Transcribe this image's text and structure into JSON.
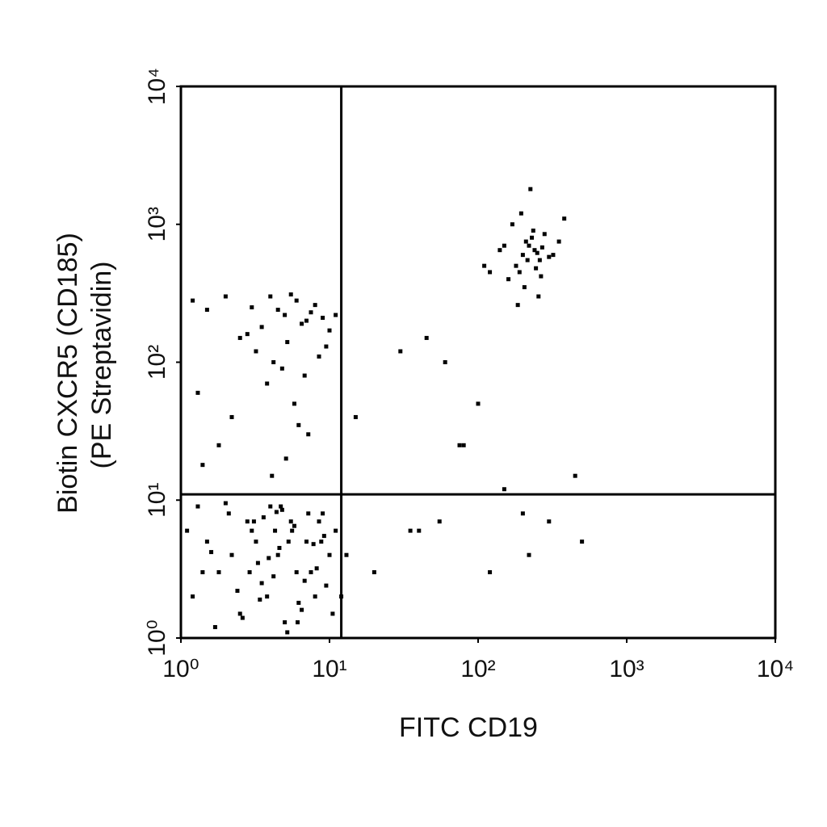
{
  "chart_data": {
    "type": "scatter",
    "xlabel": "FITC CD19",
    "ylabel": [
      "Biotin CXCR5 (CD185)",
      "(PE Streptavidin)"
    ],
    "xlog": true,
    "ylog": true,
    "xlim": [
      1,
      10000
    ],
    "ylim": [
      1,
      10000
    ],
    "xticks": [
      {
        "value": 1,
        "label": "10⁰"
      },
      {
        "value": 10,
        "label": "10¹"
      },
      {
        "value": 100,
        "label": "10²"
      },
      {
        "value": 1000,
        "label": "10³"
      },
      {
        "value": 10000,
        "label": "10⁴"
      }
    ],
    "yticks": [
      {
        "value": 1,
        "label": "10⁰"
      },
      {
        "value": 10,
        "label": "10¹"
      },
      {
        "value": 100,
        "label": "10²"
      },
      {
        "value": 1000,
        "label": "10³"
      },
      {
        "value": 10000,
        "label": "10⁴"
      }
    ],
    "gate_x": 12,
    "gate_y": 11,
    "color": "#000000",
    "x": [
      1.2,
      1.5,
      1.8,
      2.1,
      2.5,
      3,
      3.5,
      4,
      4.5,
      5,
      5.5,
      6,
      7,
      8,
      9,
      10,
      11,
      1.3,
      1.7,
      2.2,
      2.8,
      3.3,
      3.8,
      4.3,
      4.8,
      5.3,
      6.5,
      7.5,
      8.5,
      9.5,
      1.1,
      1.4,
      2,
      2.6,
      3.2,
      3.6,
      4.2,
      4.6,
      5.6,
      6.2,
      7.2,
      8.2,
      9.2,
      10.5,
      1.6,
      2.4,
      3.1,
      3.9,
      4.7,
      5.8,
      6.8,
      7.8,
      8.8,
      2.9,
      3.4,
      4.4,
      5.2,
      6.1,
      12,
      13,
      3,
      4,
      5,
      6,
      7,
      8,
      3.5,
      4.5,
      5.5,
      6.5,
      7.5,
      2.5,
      9,
      10,
      1.2,
      1.5,
      2,
      1.3,
      3.2,
      4.8,
      5.2,
      6.8,
      8.5,
      2.2,
      3.8,
      4.2,
      5.8,
      7.2,
      1.8,
      2.8,
      6.2,
      9.5,
      11,
      1.4,
      4.1,
      5.1,
      200,
      220,
      240,
      260,
      180,
      210,
      230,
      250,
      190,
      270,
      160,
      300,
      150,
      280,
      205,
      235,
      215,
      245,
      170,
      320,
      140,
      110,
      120,
      350,
      380,
      225,
      255,
      195,
      265,
      185,
      45,
      30,
      60,
      80,
      100,
      75,
      40,
      200,
      150,
      450,
      500,
      300,
      220,
      20,
      35,
      55,
      15,
      120
    ],
    "y": [
      2,
      5,
      3,
      8,
      1.5,
      6,
      2.5,
      9,
      4,
      1.3,
      7,
      3,
      5,
      2,
      8,
      4,
      6,
      9,
      1.2,
      4,
      7,
      3.5,
      2,
      6,
      8.5,
      5,
      1.6,
      3,
      7,
      2.4,
      6,
      3,
      9.5,
      1.4,
      5,
      7.5,
      2.8,
      4.5,
      6,
      1.8,
      8,
      3.2,
      5.5,
      1.5,
      4.2,
      2.2,
      7,
      3.8,
      9,
      6.5,
      2.6,
      4.8,
      5,
      3,
      1.9,
      8.2,
      1.1,
      1.3,
      2,
      4,
      250,
      300,
      220,
      280,
      200,
      260,
      180,
      240,
      310,
      190,
      230,
      150,
      210,
      170,
      280,
      240,
      300,
      60,
      120,
      90,
      140,
      80,
      110,
      40,
      70,
      100,
      50,
      30,
      25,
      160,
      35,
      130,
      220,
      18,
      15,
      20,
      600,
      700,
      650,
      550,
      500,
      750,
      800,
      620,
      450,
      680,
      400,
      580,
      700,
      850,
      350,
      900,
      550,
      480,
      1000,
      600,
      650,
      500,
      450,
      750,
      1100,
      1800,
      300,
      1200,
      420,
      260,
      150,
      120,
      100,
      25,
      50,
      25,
      6,
      8,
      12,
      15,
      5,
      7,
      4,
      3,
      6,
      7,
      40,
      3
    ]
  }
}
